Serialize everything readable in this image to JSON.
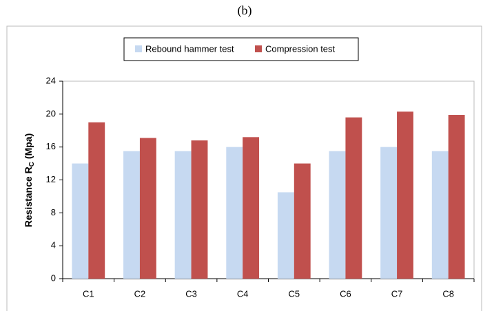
{
  "chart_data": {
    "type": "bar",
    "title": "(b)",
    "y_label": {
      "text": "Resistance R",
      "subscript": "C",
      "unit": "(Mpa)"
    },
    "categories": [
      "C1",
      "C2",
      "C3",
      "C4",
      "C5",
      "C6",
      "C7",
      "C8"
    ],
    "series": [
      {
        "name": "Rebound hammer test",
        "color": "#c6d9f1",
        "values": [
          14,
          15.5,
          15.5,
          16,
          10.5,
          15.5,
          16,
          15.5
        ]
      },
      {
        "name": "Compression test",
        "color": "#c0504d",
        "values": [
          19,
          17.1,
          16.8,
          17.2,
          14,
          19.6,
          20.3,
          19.9
        ]
      }
    ],
    "ylim": [
      0,
      24
    ],
    "yticks": [
      0,
      4,
      8,
      12,
      16,
      20,
      24
    ],
    "grid": false,
    "legend": "top"
  }
}
